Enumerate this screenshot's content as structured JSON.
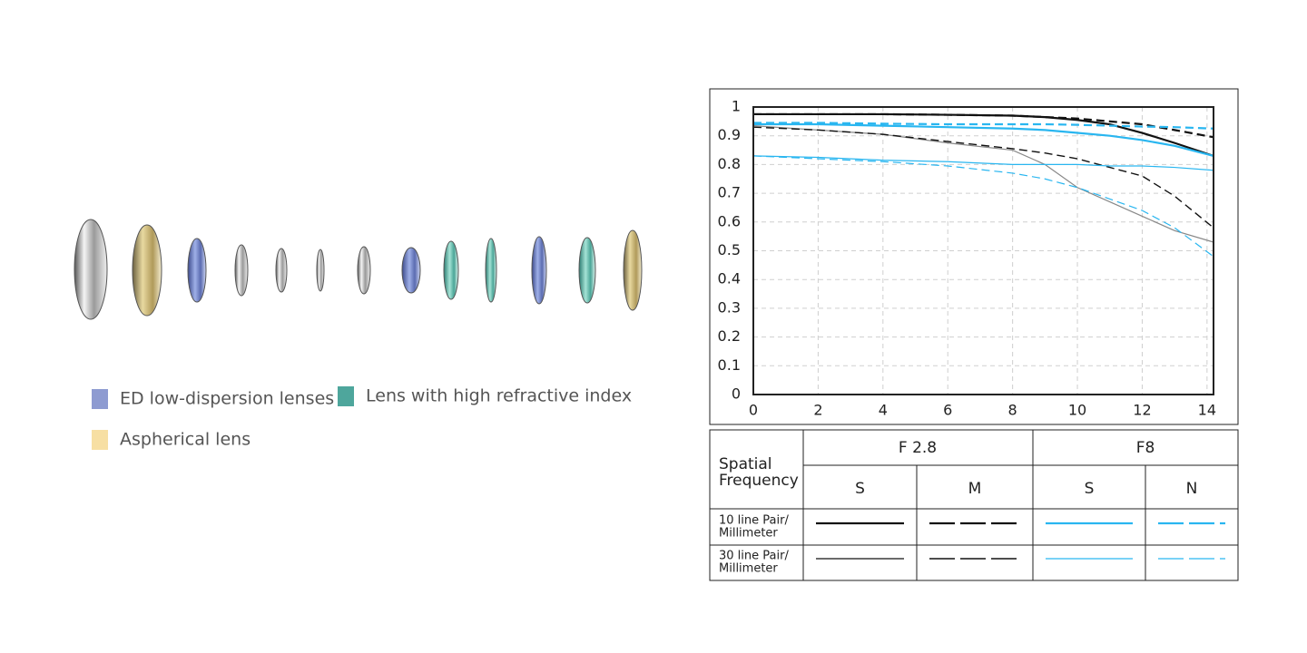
{
  "lens_legend": {
    "items": [
      {
        "label": "ED low-dispersion lenses",
        "color": "#8e9bd1"
      },
      {
        "label": "Lens with high refractive index",
        "color": "#4ea69c"
      },
      {
        "label": "Aspherical lens",
        "color": "#f7dfa3"
      }
    ]
  },
  "chart_data": {
    "type": "line",
    "x": [
      0,
      2,
      4,
      6,
      8,
      9,
      10,
      11,
      12,
      13,
      14.2
    ],
    "xlim": [
      0,
      14.2
    ],
    "xticks": [
      0,
      2,
      4,
      6,
      8,
      10,
      12,
      14
    ],
    "ylim": [
      0,
      1
    ],
    "yticks": [
      0,
      0.1,
      0.2,
      0.3,
      0.4,
      0.5,
      0.6,
      0.7,
      0.8,
      0.9,
      1
    ],
    "grid": true,
    "series": [
      {
        "color": "#111111",
        "dash": false,
        "width": 2.2,
        "values": [
          0.975,
          0.975,
          0.975,
          0.973,
          0.97,
          0.965,
          0.955,
          0.94,
          0.91,
          0.875,
          0.83
        ]
      },
      {
        "color": "#111111",
        "dash": true,
        "width": 2.2,
        "values": [
          0.975,
          0.975,
          0.975,
          0.973,
          0.97,
          0.965,
          0.96,
          0.95,
          0.94,
          0.92,
          0.895
        ]
      },
      {
        "color": "#29b6f0",
        "dash": false,
        "width": 2.2,
        "values": [
          0.94,
          0.94,
          0.935,
          0.93,
          0.925,
          0.92,
          0.91,
          0.9,
          0.885,
          0.865,
          0.83
        ]
      },
      {
        "color": "#29b6f0",
        "dash": true,
        "width": 2.2,
        "values": [
          0.945,
          0.945,
          0.942,
          0.94,
          0.94,
          0.94,
          0.938,
          0.935,
          0.932,
          0.93,
          0.925
        ]
      },
      {
        "color": "#888888",
        "dash": false,
        "width": 1.2,
        "values": [
          0.935,
          0.92,
          0.905,
          0.875,
          0.85,
          0.8,
          0.72,
          0.67,
          0.62,
          0.57,
          0.53
        ]
      },
      {
        "color": "#111111",
        "dash": true,
        "width": 1.4,
        "values": [
          0.93,
          0.92,
          0.905,
          0.88,
          0.855,
          0.84,
          0.82,
          0.79,
          0.76,
          0.69,
          0.58
        ]
      },
      {
        "color": "#29b6f0",
        "dash": false,
        "width": 1.2,
        "values": [
          0.83,
          0.825,
          0.815,
          0.81,
          0.8,
          0.8,
          0.8,
          0.795,
          0.795,
          0.79,
          0.78
        ]
      },
      {
        "color": "#29b6f0",
        "dash": true,
        "width": 1.2,
        "values": [
          0.83,
          0.82,
          0.81,
          0.795,
          0.77,
          0.75,
          0.72,
          0.68,
          0.64,
          0.58,
          0.48
        ]
      }
    ]
  },
  "table": {
    "header": [
      "Spatial",
      "Frequency"
    ],
    "apertures": [
      "F 2.8",
      "F8"
    ],
    "columns": [
      "S",
      "M",
      "S",
      "N"
    ],
    "rows": [
      [
        "10 line Pair/",
        "Millimeter"
      ],
      [
        "30 line Pair/",
        "Millimeter"
      ]
    ]
  }
}
